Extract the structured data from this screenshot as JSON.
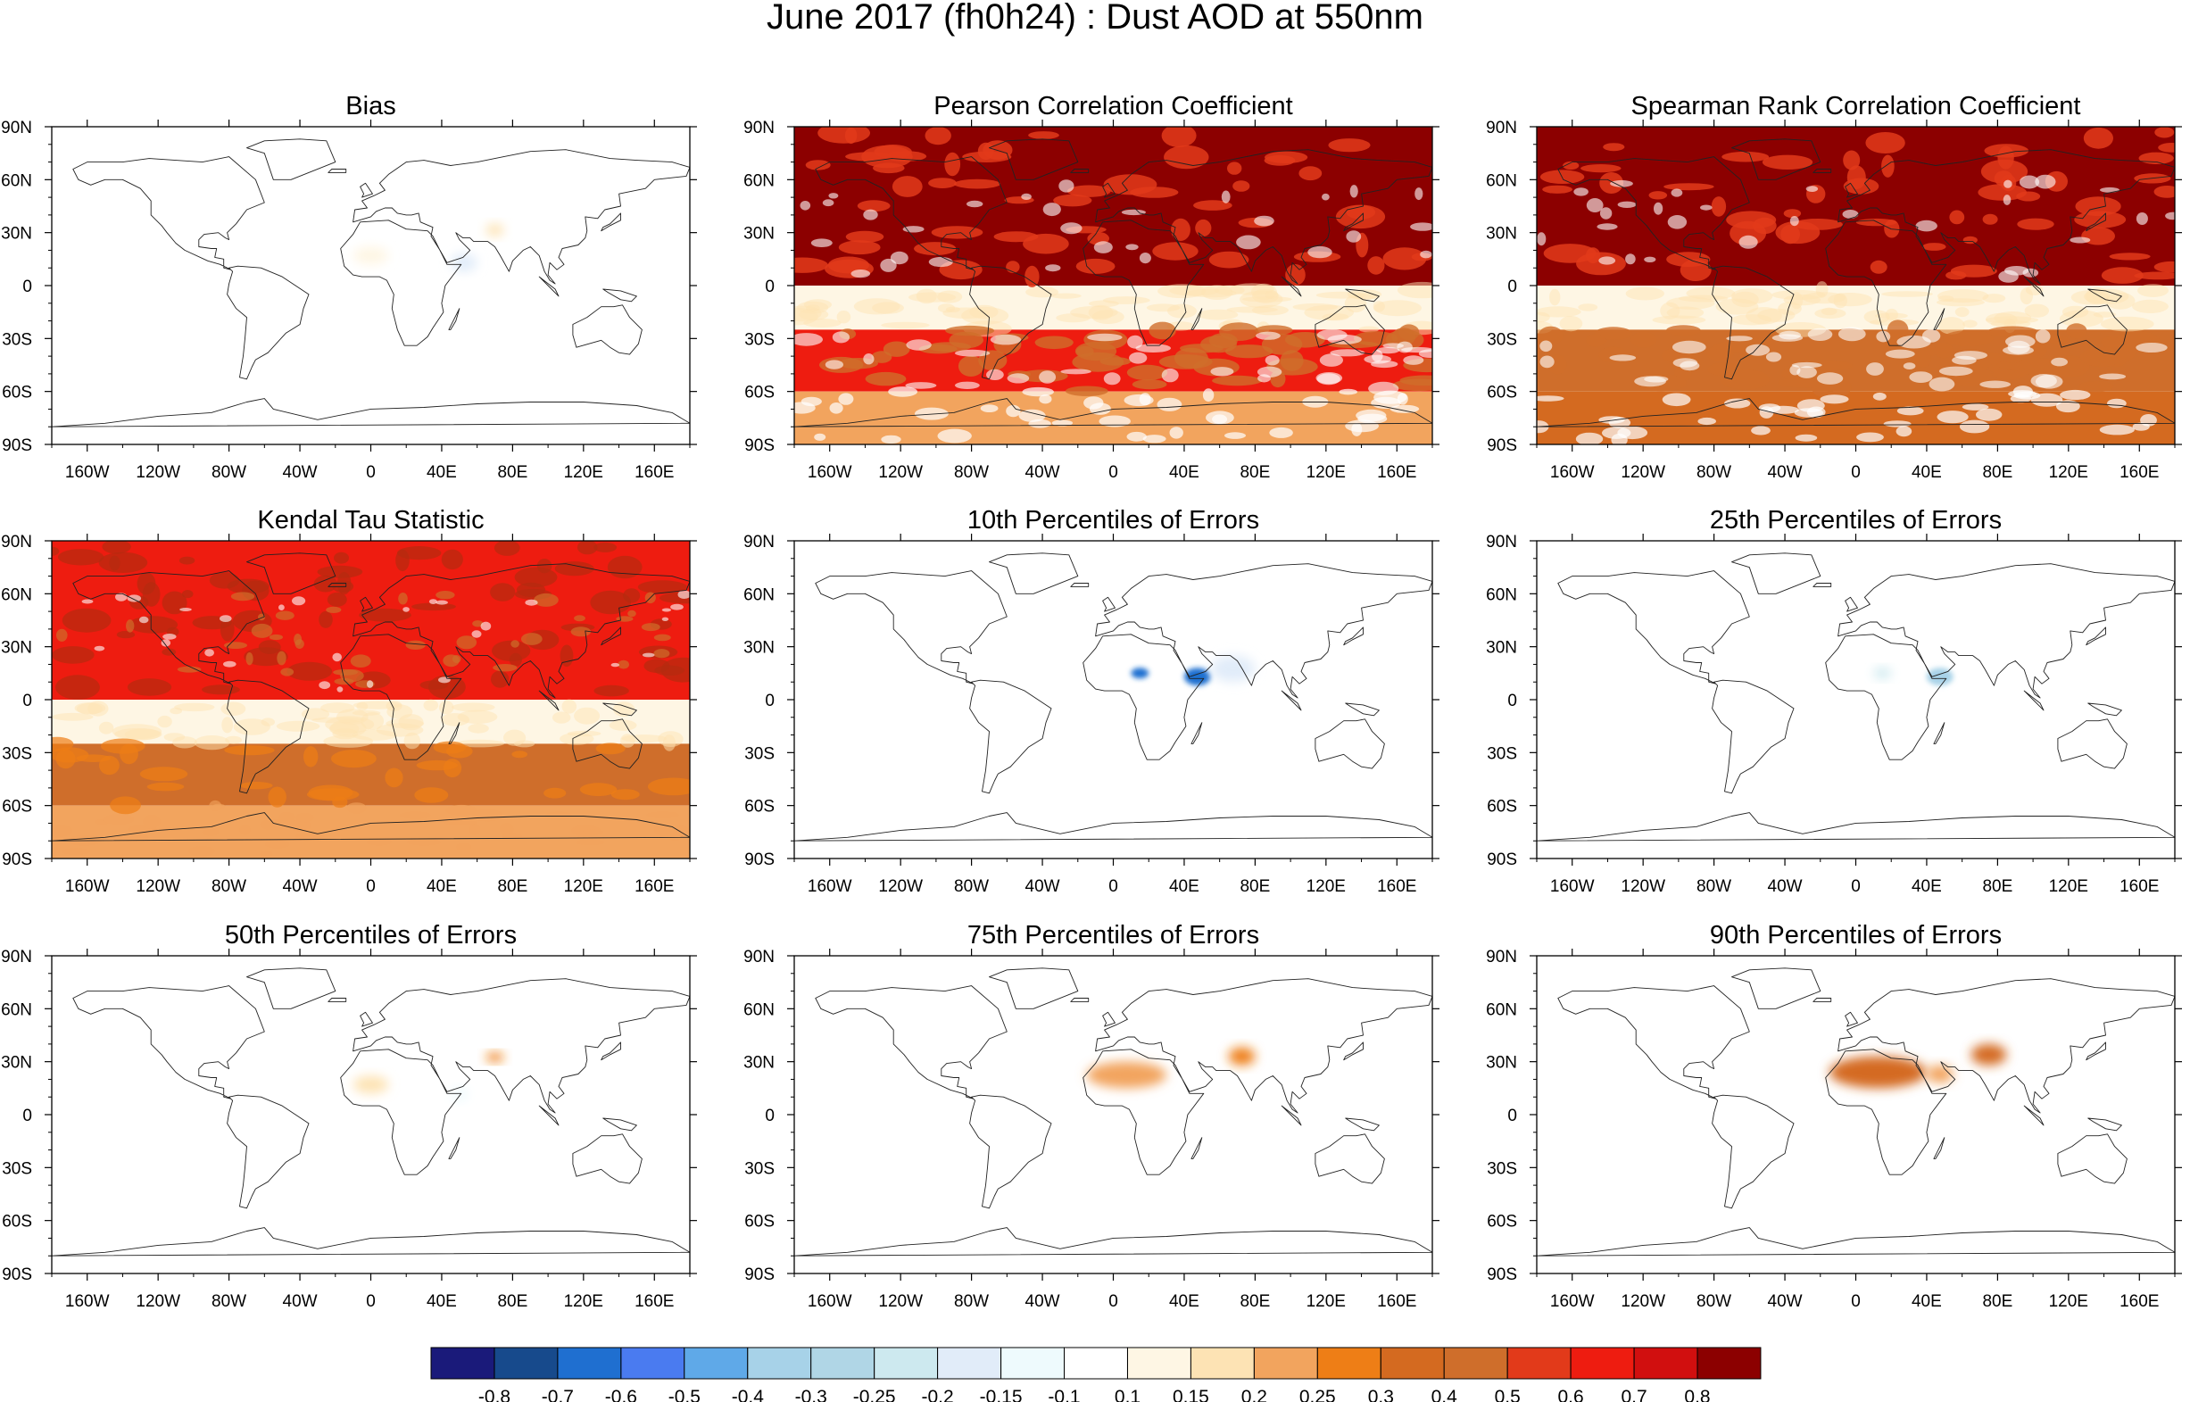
{
  "figure": {
    "title": "June 2017 (fh0h24) : Dust AOD at 550nm"
  },
  "chart_data": [
    {
      "type": "heatmap",
      "title": "Bias",
      "field": "bias",
      "xlim": [
        -180,
        180
      ],
      "ylim": [
        -90,
        90
      ],
      "xticks": [
        "160W",
        "120W",
        "80W",
        "40W",
        "0",
        "40E",
        "80E",
        "120E",
        "160E"
      ],
      "yticks": [
        "90N",
        "60N",
        "30N",
        "0",
        "30S",
        "60S",
        "90S"
      ],
      "features": [
        {
          "region": "West Africa",
          "lon": [
            -10,
            10
          ],
          "lat": [
            12,
            22
          ],
          "value": 0.12
        },
        {
          "region": "Horn of Africa / Arabian Sea",
          "lon": [
            45,
            60
          ],
          "lat": [
            8,
            18
          ],
          "value": -0.2
        },
        {
          "region": "Northwest India",
          "lon": [
            65,
            75
          ],
          "lat": [
            28,
            35
          ],
          "value": 0.15
        }
      ]
    },
    {
      "type": "heatmap",
      "title": "Pearson Correlation Coefficient",
      "field": "correlation",
      "xlim": [
        -180,
        180
      ],
      "ylim": [
        -90,
        90
      ],
      "xticks": [
        "160W",
        "120W",
        "80W",
        "40W",
        "0",
        "40E",
        "80E",
        "120E",
        "160E"
      ],
      "yticks": [
        "90N",
        "60N",
        "30N",
        "0",
        "30S",
        "60S",
        "90S"
      ],
      "features": [
        {
          "region": "Northern Hemisphere",
          "lat": [
            0,
            90
          ],
          "value": 0.8
        },
        {
          "region": "Tropical Pacific",
          "lat": [
            -25,
            0
          ],
          "value": 0.1
        },
        {
          "region": "Southern mid-latitudes",
          "lat": [
            -60,
            -25
          ],
          "value": 0.6
        },
        {
          "region": "Southern Ocean",
          "lat": [
            -90,
            -60
          ],
          "value": 0.2
        }
      ]
    },
    {
      "type": "heatmap",
      "title": "Spearman Rank Correlation Coefficient",
      "field": "correlation",
      "xlim": [
        -180,
        180
      ],
      "ylim": [
        -90,
        90
      ],
      "xticks": [
        "160W",
        "120W",
        "80W",
        "40W",
        "0",
        "40E",
        "80E",
        "120E",
        "160E"
      ],
      "yticks": [
        "90N",
        "60N",
        "30N",
        "0",
        "30S",
        "60S",
        "90S"
      ],
      "features": [
        {
          "region": "Northern Hemisphere",
          "lat": [
            0,
            90
          ],
          "value": 0.8
        },
        {
          "region": "Tropical Pacific",
          "lat": [
            -25,
            0
          ],
          "value": 0.1
        },
        {
          "region": "Southern mid-latitudes",
          "lat": [
            -60,
            -25
          ],
          "value": 0.4
        },
        {
          "region": "Southern Ocean",
          "lat": [
            -90,
            -60
          ],
          "value": 0.3
        }
      ]
    },
    {
      "type": "heatmap",
      "title": "Kendal Tau Statistic",
      "field": "kendall",
      "xlim": [
        -180,
        180
      ],
      "ylim": [
        -90,
        90
      ],
      "xticks": [
        "160W",
        "120W",
        "80W",
        "40W",
        "0",
        "40E",
        "80E",
        "120E",
        "160E"
      ],
      "yticks": [
        "90N",
        "60N",
        "30N",
        "0",
        "30S",
        "60S",
        "90S"
      ],
      "features": [
        {
          "region": "Northern Hemisphere",
          "lat": [
            0,
            90
          ],
          "value": 0.6
        },
        {
          "region": "Tropical Pacific",
          "lat": [
            -25,
            0
          ],
          "value": 0.1
        },
        {
          "region": "Southern mid-latitudes",
          "lat": [
            -60,
            -25
          ],
          "value": 0.4
        },
        {
          "region": "Southern Ocean",
          "lat": [
            -90,
            -60
          ],
          "value": 0.2
        }
      ]
    },
    {
      "type": "heatmap",
      "title": "10th Percentiles of Errors",
      "field": "p10",
      "xlim": [
        -180,
        180
      ],
      "ylim": [
        -90,
        90
      ],
      "xticks": [
        "160W",
        "120W",
        "80W",
        "40W",
        "0",
        "40E",
        "80E",
        "120E",
        "160E"
      ],
      "yticks": [
        "90N",
        "60N",
        "30N",
        "0",
        "30S",
        "60S",
        "90S"
      ],
      "features": [
        {
          "region": "Sahel",
          "lon": [
            10,
            20
          ],
          "lat": [
            12,
            18
          ],
          "value": -0.7
        },
        {
          "region": "Horn of Africa",
          "lon": [
            40,
            55
          ],
          "lat": [
            8,
            18
          ],
          "value": -0.7
        },
        {
          "region": "Arabian Sea",
          "lon": [
            55,
            80
          ],
          "lat": [
            10,
            25
          ],
          "value": -0.2
        }
      ]
    },
    {
      "type": "heatmap",
      "title": "25th Percentiles of Errors",
      "field": "p25",
      "xlim": [
        -180,
        180
      ],
      "ylim": [
        -90,
        90
      ],
      "xticks": [
        "160W",
        "120W",
        "80W",
        "40W",
        "0",
        "40E",
        "80E",
        "120E",
        "160E"
      ],
      "yticks": [
        "90N",
        "60N",
        "30N",
        "0",
        "30S",
        "60S",
        "90S"
      ],
      "features": [
        {
          "region": "Sahel",
          "lon": [
            10,
            20
          ],
          "lat": [
            12,
            18
          ],
          "value": -0.25
        },
        {
          "region": "Horn of Africa",
          "lon": [
            40,
            55
          ],
          "lat": [
            8,
            18
          ],
          "value": -0.4
        }
      ]
    },
    {
      "type": "heatmap",
      "title": "50th Percentiles of Errors",
      "field": "p50",
      "xlim": [
        -180,
        180
      ],
      "ylim": [
        -90,
        90
      ],
      "xticks": [
        "160W",
        "120W",
        "80W",
        "40W",
        "0",
        "40E",
        "80E",
        "120E",
        "160E"
      ],
      "yticks": [
        "90N",
        "60N",
        "30N",
        "0",
        "30S",
        "60S",
        "90S"
      ],
      "features": [
        {
          "region": "West Africa",
          "lon": [
            -10,
            10
          ],
          "lat": [
            12,
            22
          ],
          "value": 0.15
        },
        {
          "region": "Horn of Africa",
          "lon": [
            45,
            55
          ],
          "lat": [
            8,
            15
          ],
          "value": -0.15
        },
        {
          "region": "Northwest India",
          "lon": [
            65,
            75
          ],
          "lat": [
            30,
            35
          ],
          "value": 0.25
        }
      ]
    },
    {
      "type": "heatmap",
      "title": "75th Percentiles of Errors",
      "field": "p75",
      "xlim": [
        -180,
        180
      ],
      "ylim": [
        -90,
        90
      ],
      "xticks": [
        "160W",
        "120W",
        "80W",
        "40W",
        "0",
        "40E",
        "80E",
        "120E",
        "160E"
      ],
      "yticks": [
        "90N",
        "60N",
        "30N",
        "0",
        "30S",
        "60S",
        "90S"
      ],
      "features": [
        {
          "region": "Sahara",
          "lon": [
            -15,
            30
          ],
          "lat": [
            15,
            30
          ],
          "value": 0.2
        },
        {
          "region": "Northwest India",
          "lon": [
            65,
            80
          ],
          "lat": [
            28,
            38
          ],
          "value": 0.25
        }
      ]
    },
    {
      "type": "heatmap",
      "title": "90th Percentiles of Errors",
      "field": "p90",
      "xlim": [
        -180,
        180
      ],
      "ylim": [
        -90,
        90
      ],
      "xticks": [
        "160W",
        "120W",
        "80W",
        "40W",
        "0",
        "40E",
        "80E",
        "120E",
        "160E"
      ],
      "yticks": [
        "90N",
        "60N",
        "30N",
        "0",
        "30S",
        "60S",
        "90S"
      ],
      "features": [
        {
          "region": "Sahara",
          "lon": [
            -15,
            40
          ],
          "lat": [
            15,
            33
          ],
          "value": 0.3
        },
        {
          "region": "Arabia",
          "lon": [
            40,
            55
          ],
          "lat": [
            18,
            28
          ],
          "value": 0.2
        },
        {
          "region": "Northwest India",
          "lon": [
            65,
            85
          ],
          "lat": [
            28,
            40
          ],
          "value": 0.3
        }
      ]
    }
  ],
  "colorbar": {
    "colors": [
      "#1a1a7a",
      "#174a8c",
      "#1f6fd0",
      "#4a7bf0",
      "#5fa9e8",
      "#a7d2e8",
      "#b0d6e6",
      "#cde9ef",
      "#e1ecf9",
      "#eefafd",
      "#ffffff",
      "#fef6e4",
      "#fde3b4",
      "#f2a45e",
      "#ee7e16",
      "#d46a20",
      "#cf6e2b",
      "#e23a1a",
      "#ee1c10",
      "#d10f0f",
      "#8c0000"
    ],
    "labels": [
      "-0.8",
      "-0.7",
      "-0.6",
      "-0.5",
      "-0.4",
      "-0.3",
      "-0.25",
      "-0.2",
      "-0.15",
      "-0.1",
      "0.1",
      "0.15",
      "0.2",
      "0.25",
      "0.3",
      "0.4",
      "0.5",
      "0.6",
      "0.7",
      "0.8"
    ]
  }
}
